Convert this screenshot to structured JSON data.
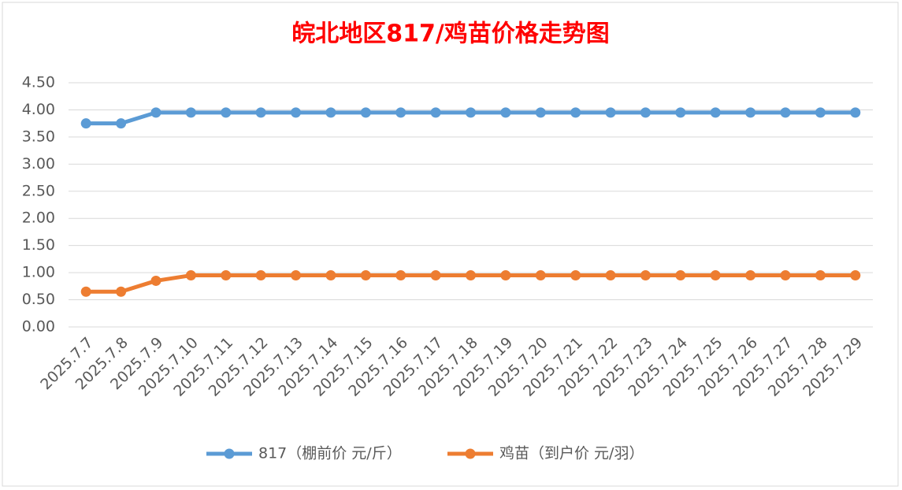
{
  "chart_data": {
    "type": "line",
    "title": "皖北地区817/鸡苗价格走势图",
    "categories": [
      "2025.7.7",
      "2025.7.8",
      "2025.7.9",
      "2025.7.10",
      "2025.7.11",
      "2025.7.12",
      "2025.7.13",
      "2025.7.14",
      "2025.7.15",
      "2025.7.16",
      "2025.7.17",
      "2025.7.18",
      "2025.7.19",
      "2025.7.20",
      "2025.7.21",
      "2025.7.22",
      "2025.7.23",
      "2025.7.24",
      "2025.7.25",
      "2025.7.26",
      "2025.7.27",
      "2025.7.28",
      "2025.7.29"
    ],
    "series": [
      {
        "name": "817（棚前价 元/斤）",
        "color": "#5b9bd5",
        "values": [
          3.75,
          3.75,
          3.95,
          3.95,
          3.95,
          3.95,
          3.95,
          3.95,
          3.95,
          3.95,
          3.95,
          3.95,
          3.95,
          3.95,
          3.95,
          3.95,
          3.95,
          3.95,
          3.95,
          3.95,
          3.95,
          3.95,
          3.95
        ]
      },
      {
        "name": "鸡苗（到户价 元/羽）",
        "color": "#ed7d31",
        "values": [
          0.65,
          0.65,
          0.85,
          0.95,
          0.95,
          0.95,
          0.95,
          0.95,
          0.95,
          0.95,
          0.95,
          0.95,
          0.95,
          0.95,
          0.95,
          0.95,
          0.95,
          0.95,
          0.95,
          0.95,
          0.95,
          0.95,
          0.95
        ]
      }
    ],
    "ylim": [
      0,
      4.5
    ],
    "yticks": [
      {
        "value": 0,
        "label": "0.00"
      },
      {
        "value": 0.5,
        "label": "0.50"
      },
      {
        "value": 1,
        "label": "1.00"
      },
      {
        "value": 1.5,
        "label": "1.50"
      },
      {
        "value": 2,
        "label": "2.00"
      },
      {
        "value": 2.5,
        "label": "2.50"
      },
      {
        "value": 3,
        "label": "3.00"
      },
      {
        "value": 3.5,
        "label": "3.50"
      },
      {
        "value": 4,
        "label": "4.00"
      },
      {
        "value": 4.5,
        "label": "4.50"
      }
    ],
    "grid": true,
    "legend": "bottom"
  }
}
